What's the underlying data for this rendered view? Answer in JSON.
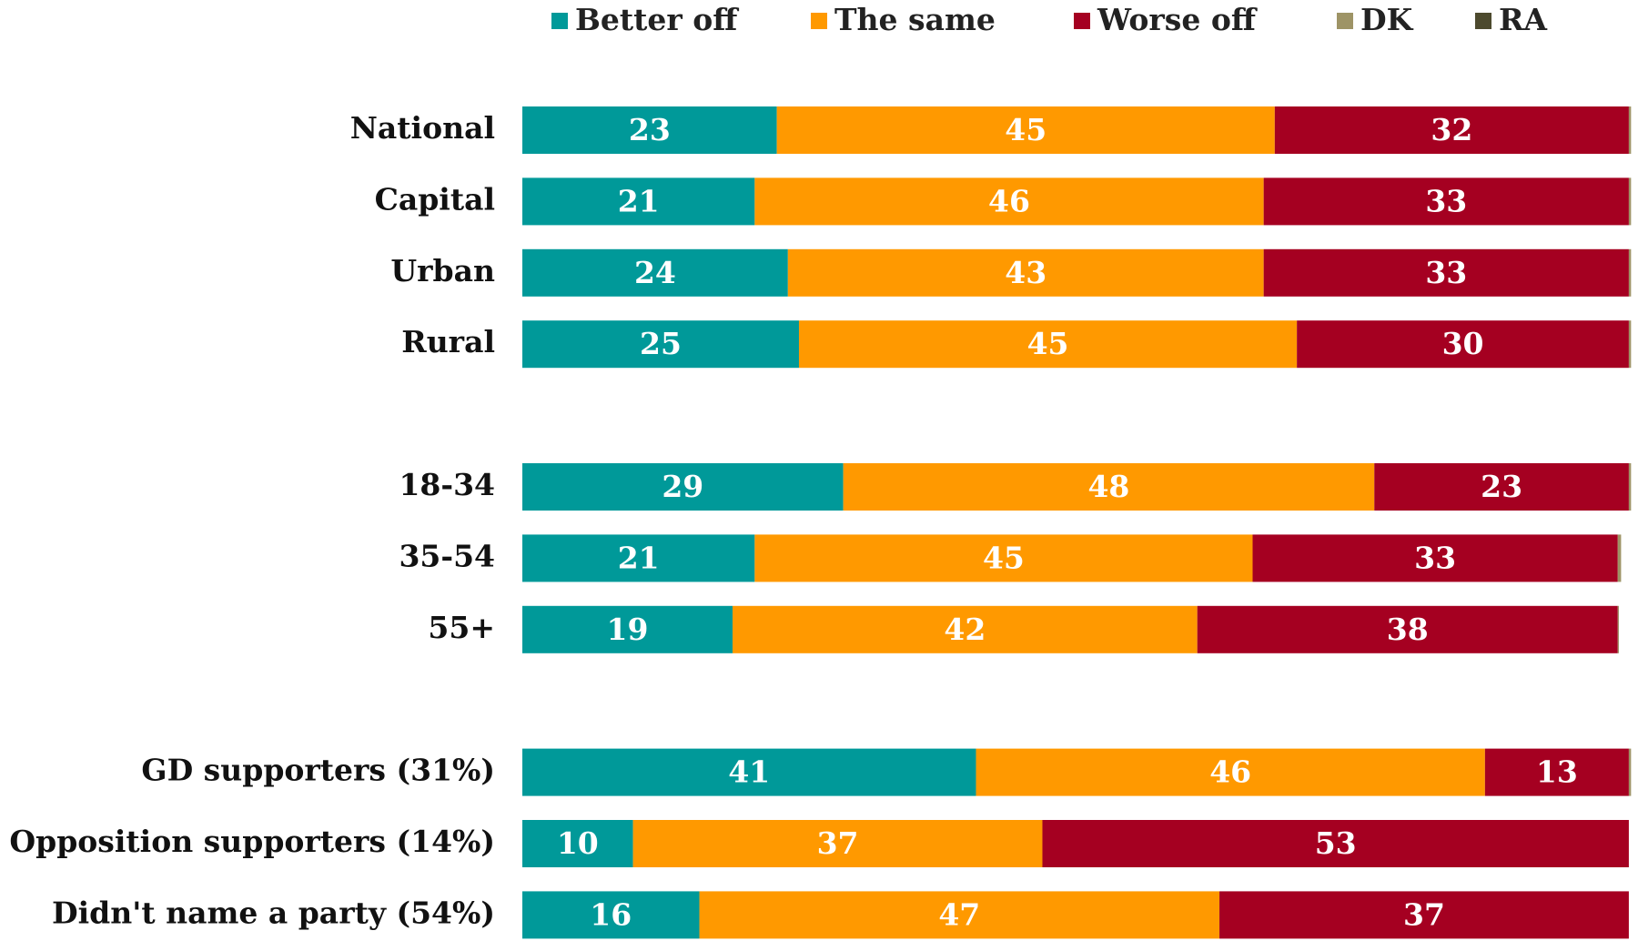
{
  "chart_data": {
    "type": "stacked-bar-horizontal",
    "categories": [
      "National",
      "Capital",
      "Urban",
      "Rural",
      null,
      "18-34",
      "35-54",
      "55+",
      null,
      "GD supporters (31%)",
      "Opposition supporters (14%)",
      "Didn't name a party  (54%)"
    ],
    "series": [
      {
        "name": "Better off",
        "color": "#009999",
        "values": [
          23,
          21,
          24,
          25,
          null,
          29,
          21,
          19,
          null,
          41,
          10,
          16
        ]
      },
      {
        "name": "The same",
        "color": "#ff9900",
        "values": [
          45,
          46,
          43,
          45,
          null,
          48,
          45,
          42,
          null,
          46,
          37,
          47
        ]
      },
      {
        "name": "Worse off",
        "color": "#a50021",
        "values": [
          32,
          33,
          33,
          30,
          null,
          23,
          33,
          38,
          null,
          13,
          53,
          37
        ]
      },
      {
        "name": "DK",
        "color": "#9e9466",
        "values": [
          0.2,
          0.2,
          0.2,
          0.2,
          null,
          0.2,
          0.3,
          0.1,
          null,
          0.2,
          0,
          0
        ]
      },
      {
        "name": "RA",
        "color": "#4d4a2e",
        "values": [
          0,
          0,
          0,
          0,
          null,
          0,
          0,
          0,
          null,
          0,
          0,
          0
        ]
      }
    ],
    "xlim": [
      0,
      100.5
    ],
    "legend": "top"
  }
}
